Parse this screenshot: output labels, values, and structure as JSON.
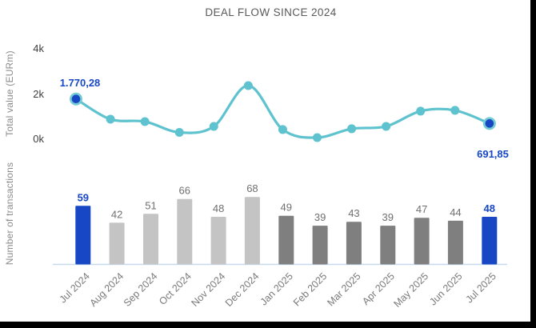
{
  "title": "DEAL FLOW SINCE 2024",
  "colors": {
    "accent_blue": "#1747c4",
    "line_teal": "#5ec3cf",
    "marker_ring": "#74cbd4",
    "bar_gray_2024": "#c4c4c4",
    "bar_gray_2025": "#7f7f7f",
    "axis_line": "#c7d9ee",
    "bar_label_gray": "#6f6f6f",
    "xlabel_gray": "#7a7a7a",
    "frame_edge": "#000000",
    "background": "#ffffff"
  },
  "chart_data": [
    {
      "type": "line",
      "name": "total-value-line",
      "ylabel": "Total value (EURm)",
      "ylim": [
        0,
        4000
      ],
      "yticks": [
        {
          "label": "4k",
          "value": 4000
        },
        {
          "label": "2k",
          "value": 2000
        },
        {
          "label": "0k",
          "value": 0
        }
      ],
      "categories": [
        "Jul 2024",
        "Aug 2024",
        "Sep 2024",
        "Oct 2024",
        "Nov 2024",
        "Dec 2024",
        "Jan 2025",
        "Feb 2025",
        "Mar 2025",
        "Apr 2025",
        "May 2025",
        "Jun 2025",
        "Jul 2025"
      ],
      "values": [
        1770.28,
        880,
        775,
        300,
        565,
        2360,
        425,
        70,
        460,
        565,
        1235,
        1270,
        691.85
      ],
      "first_point_label": "1.770,28",
      "last_point_label": "691,85",
      "grid": false,
      "legend": "none"
    },
    {
      "type": "bar",
      "name": "transactions-bars",
      "ylabel": "Number of transactions",
      "categories": [
        "Jul 2024",
        "Aug 2024",
        "Sep 2024",
        "Oct 2024",
        "Nov 2024",
        "Dec 2024",
        "Jan 2025",
        "Feb 2025",
        "Mar 2025",
        "Apr 2025",
        "May 2025",
        "Jun 2025",
        "Jul 2025"
      ],
      "values": [
        59,
        42,
        51,
        66,
        48,
        68,
        49,
        39,
        43,
        39,
        47,
        44,
        48
      ],
      "bar_color_keys": [
        "accent",
        "light",
        "light",
        "light",
        "light",
        "light",
        "dark",
        "dark",
        "dark",
        "dark",
        "dark",
        "dark",
        "accent"
      ],
      "grid": false,
      "legend": "none"
    }
  ]
}
